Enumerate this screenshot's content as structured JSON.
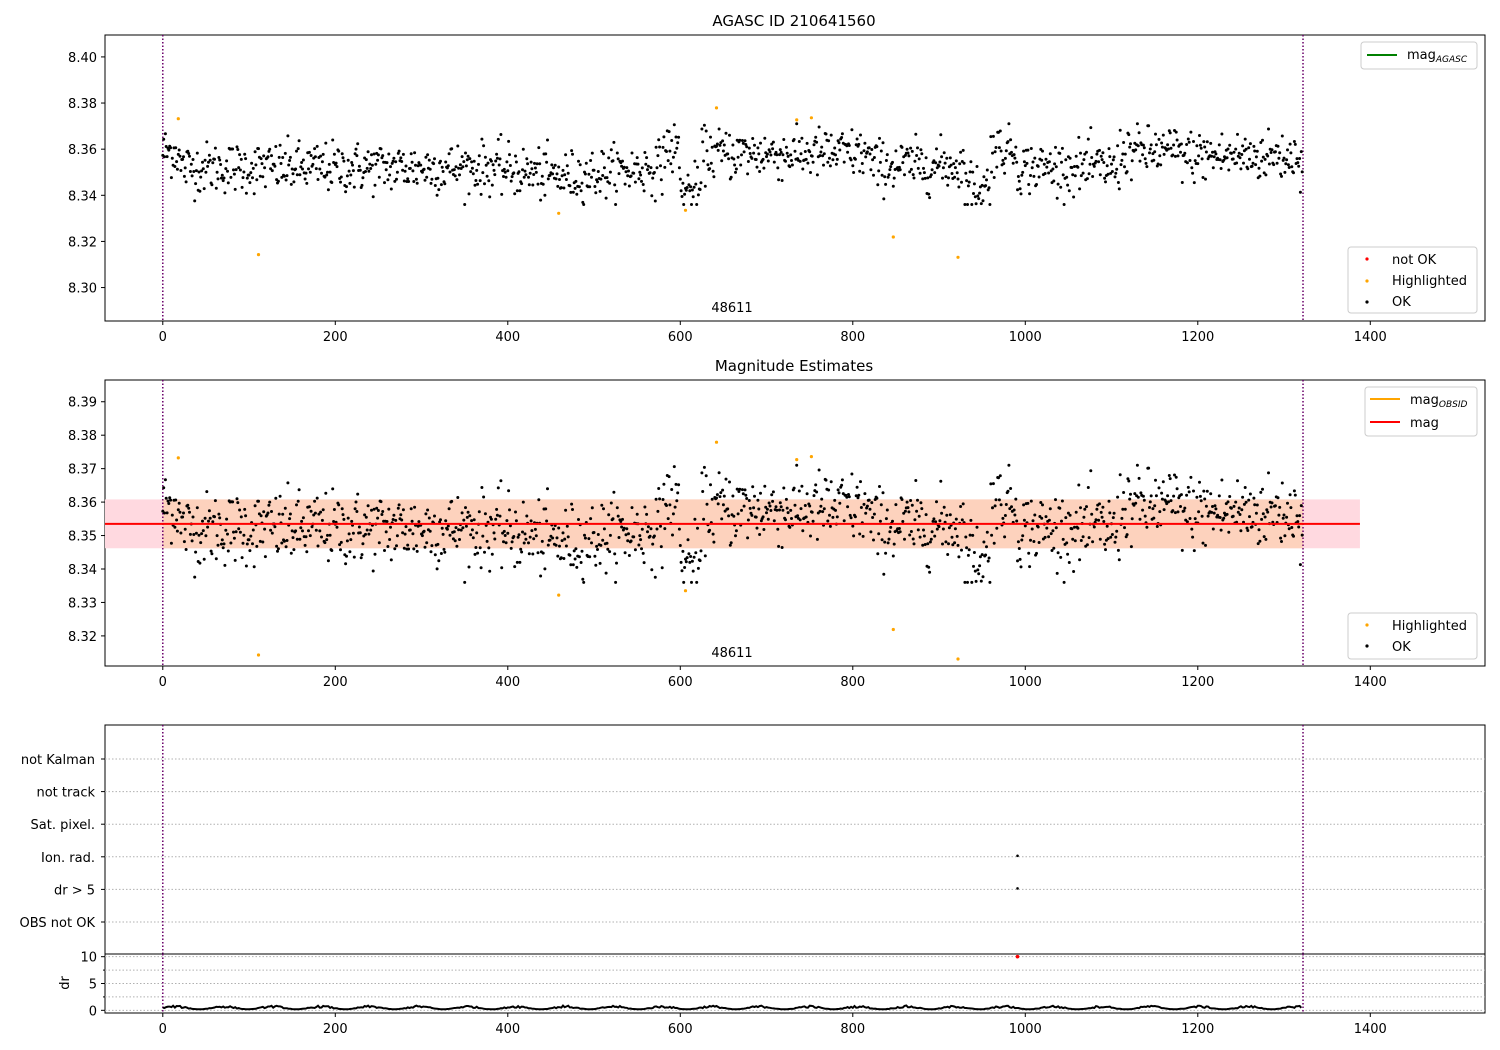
{
  "chart_data": [
    {
      "type": "scatter",
      "title": "AGASC ID 210641560",
      "xlim": [
        -67,
        1533
      ],
      "ylim": [
        8.2855,
        8.4095
      ],
      "xticks": [
        0,
        200,
        400,
        600,
        800,
        1000,
        1200,
        1400
      ],
      "yticks": [
        8.3,
        8.32,
        8.34,
        8.36,
        8.38,
        8.4
      ],
      "ytick_labels": [
        "8.30",
        "8.32",
        "8.34",
        "8.36",
        "8.38",
        "8.40"
      ],
      "obsid_markers": [
        0,
        1322
      ],
      "obsid_text": "48611",
      "line_legend": [
        {
          "label": "mag",
          "sub": "AGASC",
          "color": "#008000"
        }
      ],
      "marker_legend": [
        {
          "label": "not OK",
          "color": "#ff0000"
        },
        {
          "label": "Highlighted",
          "color": "#ffa500"
        },
        {
          "label": "OK",
          "color": "#000000"
        }
      ],
      "line_legend_position": "top-right",
      "marker_legend_position": "bottom-right",
      "n_points": 1322,
      "ok_color": "#000000",
      "highlighted": [
        {
          "x": 18,
          "y": 8.3732
        },
        {
          "x": 111,
          "y": 8.3143
        },
        {
          "x": 459,
          "y": 8.3322
        },
        {
          "x": 606,
          "y": 8.3335
        },
        {
          "x": 642,
          "y": 8.3779
        },
        {
          "x": 735,
          "y": 8.3727
        },
        {
          "x": 752,
          "y": 8.3736
        },
        {
          "x": 847,
          "y": 8.3219
        },
        {
          "x": 922,
          "y": 8.3131
        }
      ]
    },
    {
      "type": "scatter",
      "title": "Magnitude Estimates",
      "xlim": [
        -67,
        1533
      ],
      "ylim": [
        8.311,
        8.3965
      ],
      "xticks": [
        0,
        200,
        400,
        600,
        800,
        1000,
        1200,
        1400
      ],
      "yticks": [
        8.32,
        8.33,
        8.34,
        8.35,
        8.36,
        8.37,
        8.38,
        8.39
      ],
      "ytick_labels": [
        "8.32",
        "8.33",
        "8.34",
        "8.35",
        "8.36",
        "8.37",
        "8.38",
        "8.39"
      ],
      "obsid_markers": [
        0,
        1322
      ],
      "obsid_text": "48611",
      "mag_line": {
        "value": 8.3535,
        "x_range": [
          -67,
          1388
        ],
        "color": "#ff0000"
      },
      "mag_band": {
        "range": [
          8.3462,
          8.3608
        ],
        "color": "#ffd9e0"
      },
      "mag_obsid_band": {
        "range": [
          8.3462,
          8.3608
        ],
        "x_range": [
          0,
          1322
        ],
        "color": "#fdd2bd"
      },
      "line_legend": [
        {
          "label": "mag",
          "sub": "OBSID",
          "color": "#ffa500"
        },
        {
          "label": "mag",
          "sub": "",
          "color": "#ff0000"
        }
      ],
      "marker_legend": [
        {
          "label": "Highlighted",
          "color": "#ffa500"
        },
        {
          "label": "OK",
          "color": "#000000"
        }
      ],
      "line_legend_position": "top-right",
      "marker_legend_position": "bottom-right"
    },
    {
      "type": "scatter",
      "title": "",
      "xlim": [
        -67,
        1533
      ],
      "categories": [
        "not Kalman",
        "not track",
        "Sat. pixel.",
        "Ion. rad.",
        "dr > 5",
        "OBS not OK"
      ],
      "flag_points": [
        {
          "category": "Ion. rad.",
          "x": 991
        },
        {
          "category": "dr > 5",
          "x": 991
        }
      ],
      "obsid_markers": [
        0,
        1322
      ]
    },
    {
      "type": "line",
      "title": "",
      "xlabel": "",
      "ylabel": "dr",
      "xlim": [
        -67,
        1533
      ],
      "ylim": [
        -0.5,
        10.5
      ],
      "xticks": [
        0,
        200,
        400,
        600,
        800,
        1000,
        1200,
        1400
      ],
      "yticks": [
        0,
        5,
        10
      ],
      "typical_dr": [
        0.2,
        0.9
      ],
      "outlier": {
        "x": 991,
        "y": 10.0,
        "color": "#ff0000"
      },
      "obsid_markers": [
        0,
        1322
      ]
    }
  ]
}
